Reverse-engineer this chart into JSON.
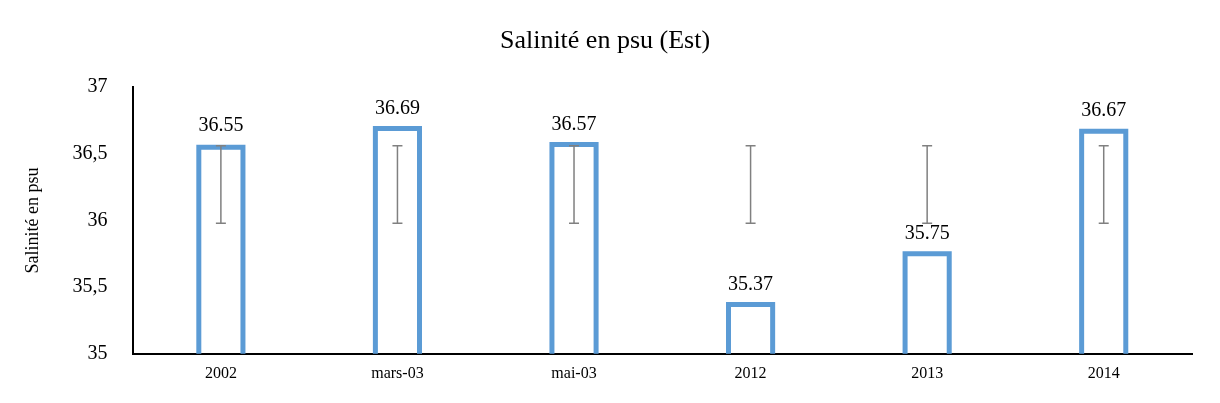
{
  "chart_data": {
    "type": "bar",
    "title": "Salinité en psu (Est)",
    "ylabel": "Salinité en psu",
    "categories": [
      "2002",
      "mars-03",
      "mai-03",
      "2012",
      "2013",
      "2014"
    ],
    "values": [
      36.55,
      36.69,
      36.57,
      35.37,
      35.75,
      36.67
    ],
    "color": "#5b9bd5",
    "errors": [
      [
        35.98,
        36.56
      ],
      [
        35.98,
        36.56
      ],
      [
        35.98,
        36.56
      ],
      [
        35.98,
        36.56
      ],
      [
        35.98,
        36.56
      ],
      [
        35.98,
        36.56
      ]
    ],
    "ylim": [
      35,
      37
    ],
    "yticks": [
      35,
      {
        "value": 35.5,
        "label": "35,5"
      },
      36,
      {
        "value": 36.5,
        "label": "36,5"
      },
      37
    ],
    "data_labels": true,
    "grid": false,
    "legend": false
  }
}
